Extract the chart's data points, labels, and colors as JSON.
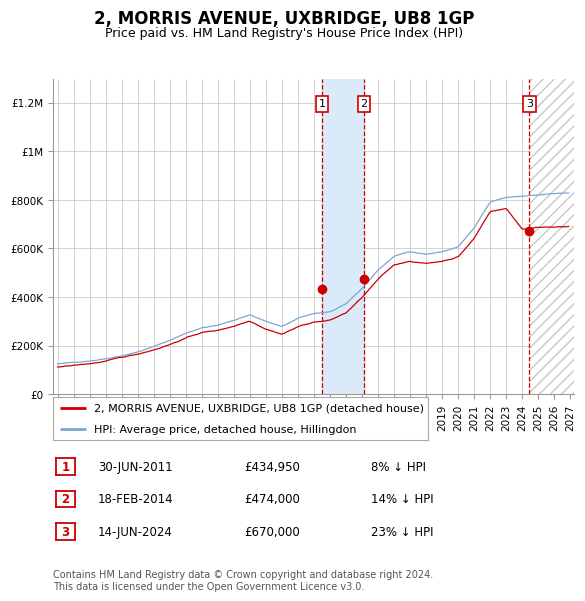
{
  "title": "2, MORRIS AVENUE, UXBRIDGE, UB8 1GP",
  "subtitle": "Price paid vs. HM Land Registry's House Price Index (HPI)",
  "ylim": [
    0,
    1300000
  ],
  "yticks": [
    0,
    200000,
    400000,
    600000,
    800000,
    1000000,
    1200000
  ],
  "ytick_labels": [
    "£0",
    "£200K",
    "£400K",
    "£600K",
    "£800K",
    "£1M",
    "£1.2M"
  ],
  "hpi_color": "#7ba7d4",
  "price_color": "#cc0000",
  "transaction_color": "#cc0000",
  "shade_color": "#daeaf8",
  "grid_color": "#cccccc",
  "bg_color": "#ffffff",
  "sales": [
    {
      "date_year": 2011.5,
      "price": 434950,
      "label": "1",
      "date_str": "30-JUN-2011",
      "pct": "8%"
    },
    {
      "date_year": 2014.125,
      "price": 474000,
      "label": "2",
      "date_str": "18-FEB-2014",
      "pct": "14%"
    },
    {
      "date_year": 2024.45,
      "price": 670000,
      "label": "3",
      "date_str": "14-JUN-2024",
      "pct": "23%"
    }
  ],
  "legend_entries": [
    "2, MORRIS AVENUE, UXBRIDGE, UB8 1GP (detached house)",
    "HPI: Average price, detached house, Hillingdon"
  ],
  "footer_text": "Contains HM Land Registry data © Crown copyright and database right 2024.\nThis data is licensed under the Open Government Licence v3.0.",
  "title_fontsize": 12,
  "subtitle_fontsize": 9,
  "tick_fontsize": 7.5,
  "legend_fontsize": 8,
  "table_fontsize": 8.5,
  "footer_fontsize": 7
}
